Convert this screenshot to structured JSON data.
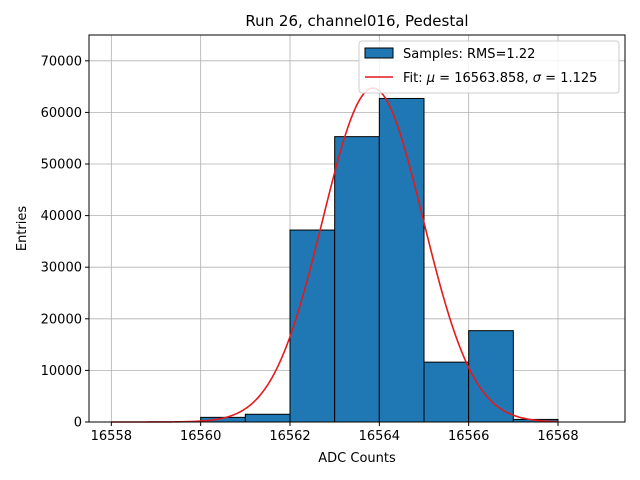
{
  "chart_data": {
    "type": "bar",
    "title": "Run 26, channel016, Pedestal",
    "xlabel": "ADC Counts",
    "ylabel": "Entries",
    "xlim": [
      16557.5,
      16569.5
    ],
    "ylim": [
      0,
      75000
    ],
    "xticks": [
      16558,
      16560,
      16562,
      16564,
      16566,
      16568
    ],
    "yticks": [
      0,
      10000,
      20000,
      30000,
      40000,
      50000,
      60000,
      70000
    ],
    "grid": true,
    "legend_position": "top-right",
    "bins": [
      {
        "left": 16560,
        "right": 16561,
        "value": 900
      },
      {
        "left": 16561,
        "right": 16562,
        "value": 1500
      },
      {
        "left": 16562,
        "right": 16563,
        "value": 37200
      },
      {
        "left": 16563,
        "right": 16564,
        "value": 55300
      },
      {
        "left": 16564,
        "right": 16565,
        "value": 62700
      },
      {
        "left": 16565,
        "right": 16566,
        "value": 11600
      },
      {
        "left": 16566,
        "right": 16567,
        "value": 17700
      },
      {
        "left": 16567,
        "right": 16568,
        "value": 500
      }
    ],
    "fit": {
      "mu": 16563.858,
      "sigma": 1.125,
      "amplitude": 64700,
      "x_range": [
        16558,
        16568
      ]
    },
    "legend": {
      "samples_label": "Samples: RMS=1.22",
      "fit_prefix": "Fit: ",
      "mu_symbol": "μ",
      "fit_middle": " = 16563.858, ",
      "sigma_symbol": "σ",
      "fit_suffix": " = 1.125"
    },
    "colors": {
      "bar_fill": "#1f77b4",
      "bar_edge": "#000000",
      "fit_line": "#e41a1c",
      "grid": "#b0b0b0"
    }
  }
}
